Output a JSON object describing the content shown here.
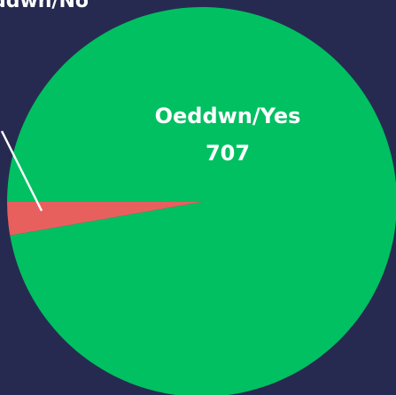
{
  "chart_data": {
    "type": "pie",
    "categories": [
      "Oeddwn/Yes",
      "Oeddwn/No"
    ],
    "values": [
      707,
      20
    ],
    "colors": [
      "#00c061",
      "#e8605e"
    ]
  }
}
